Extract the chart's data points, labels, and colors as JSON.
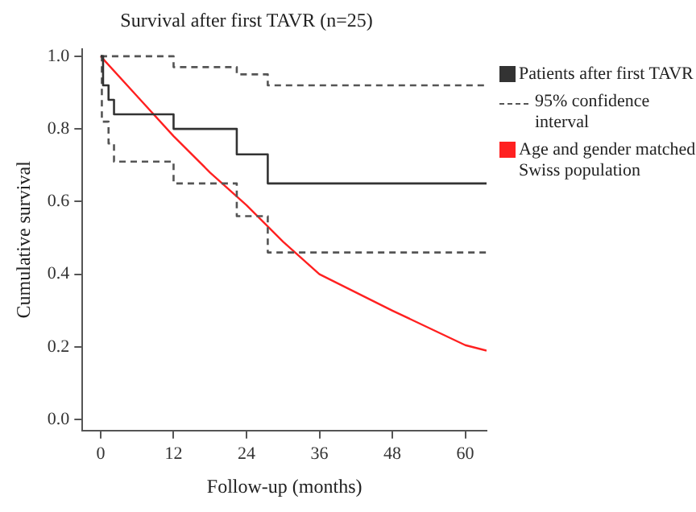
{
  "chart_data": {
    "type": "step",
    "title": "Survival after first TAVR (n=25)",
    "xlabel": "Follow-up (months)",
    "ylabel": "Cumulative survival",
    "xlim": [
      -3,
      63.5
    ],
    "xticks": [
      0,
      12,
      24,
      36,
      48,
      60
    ],
    "ylim": [
      -0.03,
      1.02
    ],
    "yticks": [
      {
        "value": 0,
        "label": "0.0"
      },
      {
        "value": 0.2,
        "label": "0.2"
      },
      {
        "value": 0.4,
        "label": "0.4"
      },
      {
        "value": 0.6,
        "label": "0.6"
      },
      {
        "value": 0.8,
        "label": "0.8"
      },
      {
        "value": 1,
        "label": "1.0"
      }
    ],
    "grid": false,
    "legend": "right",
    "marker": "none",
    "series": [
      {
        "name": "Patients after first TAVR",
        "color": "#333333",
        "line_style": "solid",
        "x": [
          0,
          0.4,
          1.3,
          2.2,
          12,
          22.4,
          27.5,
          63.5
        ],
        "values": [
          1,
          0.92,
          0.88,
          0.84,
          0.8,
          0.73,
          0.65,
          0.65
        ]
      },
      {
        "name": "95% confidence interval",
        "color": "#555555",
        "line_style": "dashed",
        "x": [
          0,
          12,
          22.4,
          27.5,
          63.5
        ],
        "values": [
          1,
          0.97,
          0.95,
          0.92,
          0.92
        ]
      },
      {
        "color": "#555555",
        "line_style": "dashed",
        "x": [
          0,
          0.2,
          1.3,
          2.2,
          12,
          22.4,
          27.5,
          63.5
        ],
        "values": [
          1,
          0.82,
          0.76,
          0.71,
          0.65,
          0.56,
          0.46,
          0.46
        ]
      },
      {
        "name": "Age and gender matched Swiss population",
        "type": "line",
        "color": "#ff2020",
        "line_style": "solid",
        "x": [
          0,
          6,
          12,
          18,
          24,
          30,
          36,
          48,
          60,
          63.5
        ],
        "values": [
          1,
          0.89,
          0.78,
          0.68,
          0.59,
          0.49,
          0.4,
          0.3,
          0.205,
          0.19
        ]
      }
    ]
  }
}
